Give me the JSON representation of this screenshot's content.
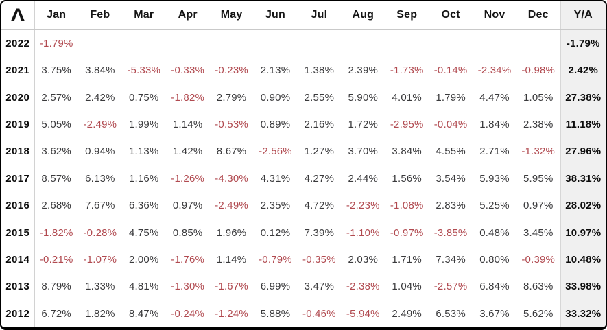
{
  "header": {
    "logo_glyph": "Λ",
    "months": [
      "Jan",
      "Feb",
      "Mar",
      "Apr",
      "May",
      "Jun",
      "Jul",
      "Aug",
      "Sep",
      "Oct",
      "Nov",
      "Dec"
    ],
    "ytd_label": "Y/A"
  },
  "colors": {
    "negative_text": "#b14a50",
    "positive_text": "#3a3a3c",
    "header_text": "#141414",
    "ytd_background": "#f0f0f0",
    "divider": "#c9c9c9",
    "frame_border": "#000000"
  },
  "chart_data": {
    "type": "table",
    "title": "Monthly returns by year",
    "columns": [
      "Jan",
      "Feb",
      "Mar",
      "Apr",
      "May",
      "Jun",
      "Jul",
      "Aug",
      "Sep",
      "Oct",
      "Nov",
      "Dec",
      "Y/A"
    ],
    "rows": [
      {
        "year": "2022",
        "months": [
          "-1.79%",
          "",
          "",
          "",
          "",
          "",
          "",
          "",
          "",
          "",
          "",
          ""
        ],
        "ytd": "-1.79%"
      },
      {
        "year": "2021",
        "months": [
          "3.75%",
          "3.84%",
          "-5.33%",
          "-0.33%",
          "-0.23%",
          "2.13%",
          "1.38%",
          "2.39%",
          "-1.73%",
          "-0.14%",
          "-2.34%",
          "-0.98%"
        ],
        "ytd": "2.42%"
      },
      {
        "year": "2020",
        "months": [
          "2.57%",
          "2.42%",
          "0.75%",
          "-1.82%",
          "2.79%",
          "0.90%",
          "2.55%",
          "5.90%",
          "4.01%",
          "1.79%",
          "4.47%",
          "1.05%"
        ],
        "ytd": "27.38%"
      },
      {
        "year": "2019",
        "months": [
          "5.05%",
          "-2.49%",
          "1.99%",
          "1.14%",
          "-0.53%",
          "0.89%",
          "2.16%",
          "1.72%",
          "-2.95%",
          "-0.04%",
          "1.84%",
          "2.38%"
        ],
        "ytd": "11.18%"
      },
      {
        "year": "2018",
        "months": [
          "3.62%",
          "0.94%",
          "1.13%",
          "1.42%",
          "8.67%",
          "-2.56%",
          "1.27%",
          "3.70%",
          "3.84%",
          "4.55%",
          "2.71%",
          "-1.32%"
        ],
        "ytd": "27.96%"
      },
      {
        "year": "2017",
        "months": [
          "8.57%",
          "6.13%",
          "1.16%",
          "-1.26%",
          "-4.30%",
          "4.31%",
          "4.27%",
          "2.44%",
          "1.56%",
          "3.54%",
          "5.93%",
          "5.95%"
        ],
        "ytd": "38.31%"
      },
      {
        "year": "2016",
        "months": [
          "2.68%",
          "7.67%",
          "6.36%",
          "0.97%",
          "-2.49%",
          "2.35%",
          "4.72%",
          "-2.23%",
          "-1.08%",
          "2.83%",
          "5.25%",
          "0.97%"
        ],
        "ytd": "28.02%"
      },
      {
        "year": "2015",
        "months": [
          "-1.82%",
          "-0.28%",
          "4.75%",
          "0.85%",
          "1.96%",
          "0.12%",
          "7.39%",
          "-1.10%",
          "-0.97%",
          "-3.85%",
          "0.48%",
          "3.45%"
        ],
        "ytd": "10.97%"
      },
      {
        "year": "2014",
        "months": [
          "-0.21%",
          "-1.07%",
          "2.00%",
          "-1.76%",
          "1.14%",
          "-0.79%",
          "-0.35%",
          "2.03%",
          "1.71%",
          "7.34%",
          "0.80%",
          "-0.39%"
        ],
        "ytd": "10.48%"
      },
      {
        "year": "2013",
        "months": [
          "8.79%",
          "1.33%",
          "4.81%",
          "-1.30%",
          "-1.67%",
          "6.99%",
          "3.47%",
          "-2.38%",
          "1.04%",
          "-2.57%",
          "6.84%",
          "8.63%"
        ],
        "ytd": "33.98%"
      },
      {
        "year": "2012",
        "months": [
          "6.72%",
          "1.82%",
          "8.47%",
          "-0.24%",
          "-1.24%",
          "5.88%",
          "-0.46%",
          "-5.94%",
          "2.49%",
          "6.53%",
          "3.67%",
          "5.62%"
        ],
        "ytd": "33.32%"
      }
    ]
  }
}
